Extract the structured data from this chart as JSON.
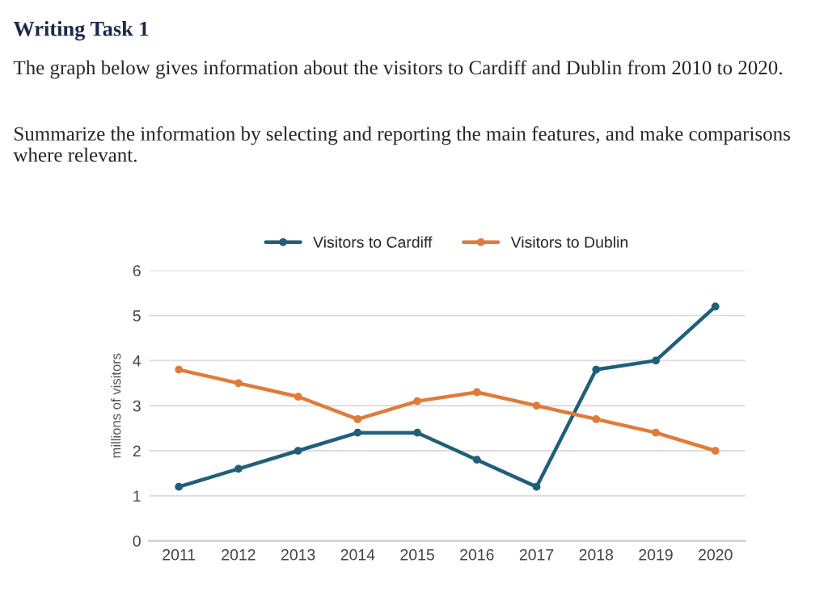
{
  "chart_data": {
    "type": "line",
    "title": "Writing Task 1",
    "subtitle": "The graph below gives information about the visitors to Cardiff and Dublin from 2010 to 2020.",
    "annotations": [
      "Summarize the information by selecting and reporting the main features, and make comparisons where relevant."
    ],
    "categories": [
      "2011",
      "2012",
      "2013",
      "2014",
      "2015",
      "2016",
      "2017",
      "2018",
      "2019",
      "2020"
    ],
    "series": [
      {
        "name": "Visitors to Cardiff",
        "color": "#1f5f7a",
        "values": [
          1.2,
          1.6,
          2.0,
          2.4,
          2.4,
          1.8,
          1.2,
          3.8,
          4.0,
          5.2
        ]
      },
      {
        "name": "Visitors to Dublin",
        "color": "#e07b39",
        "values": [
          3.8,
          3.5,
          3.2,
          2.7,
          3.1,
          3.3,
          3.0,
          2.7,
          2.4,
          2.0
        ]
      }
    ],
    "ylabel": "millions of visitors",
    "ylim": [
      0,
      6
    ],
    "yticks": [
      0,
      1,
      2,
      3,
      4,
      5,
      6
    ],
    "grid": "y",
    "legend": "top",
    "marker": "circle",
    "line_style": "solid"
  }
}
